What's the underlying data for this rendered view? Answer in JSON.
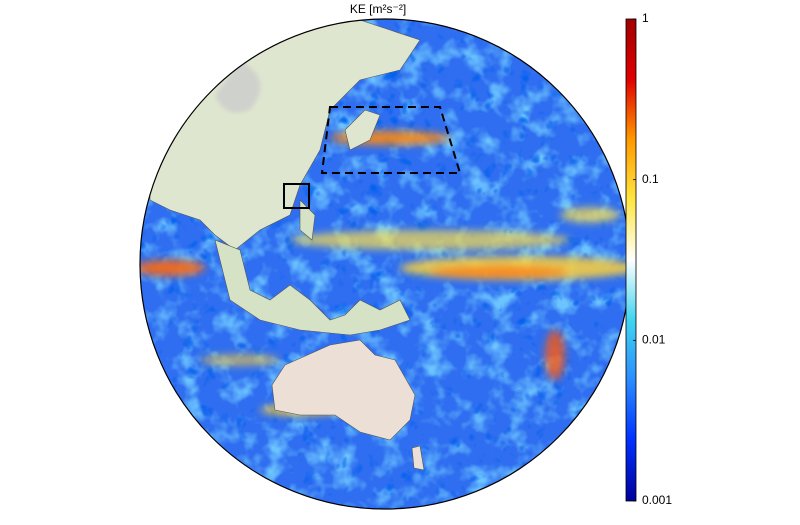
{
  "title": "KE [m²s⁻²]",
  "colorbar": {
    "scale": "log",
    "lim": [
      0.001,
      1
    ],
    "ticks": [
      1,
      0.1,
      0.01,
      0.001
    ],
    "colors": [
      "#00009a",
      "#0030ff",
      "#2a8cff",
      "#3fd4f0",
      "#ffffff",
      "#ffe640",
      "#ff9a00",
      "#e00000",
      "#a00000"
    ]
  }
}
